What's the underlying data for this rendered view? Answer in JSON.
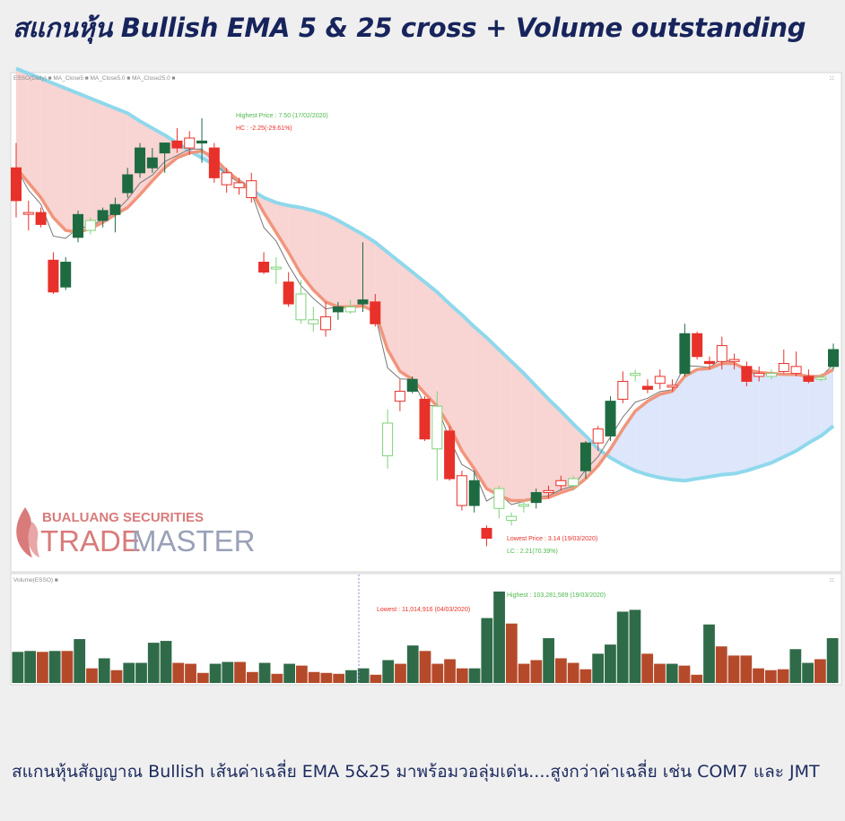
{
  "header": {
    "title": "สแกนหุ้น Bullish EMA 5 & 25 cross + Volume outstanding"
  },
  "caption": "สแกนหุ้นสัญญาณ Bullish เส้นค่าเฉลี่ย EMA 5&25  มาพร้อมวอลุ่มเด่น....สูงกว่าค่าเฉลี่ย เช่น COM7 และ JMT",
  "watermark": {
    "line1": "BUALUANG SECURITIES",
    "line2a": "TRADE",
    "line2b": "MASTER"
  },
  "colors": {
    "up": "#1e6b42",
    "down": "#e8312a",
    "up_hollow": "#7ed37a",
    "down_hollow": "#e8312a",
    "ema_fast": "#f0957c",
    "ema_slow": "#8fd8ec",
    "fill_bear": "#f8d4d2",
    "fill_bull": "#dde6fa",
    "vol_up": "#2f6b48",
    "vol_down": "#b54a2a"
  },
  "chart_data": [
    {
      "type": "candlestick",
      "legend": "ESSO(Daily) ■ MA_Close5 ■ MA_Close5.0 ■ MA_Close25.0 ■",
      "ylim": [
        2.9,
        7.9
      ],
      "annotations": {
        "highest": "Highest Price : 7.50 (17/02/2020)",
        "hc": "HC : -2.25(-29.61%)",
        "lowest": "Lowest Price : 3.14 (19/03/2020)",
        "lc": "LC : 2.21(70.39%)"
      },
      "candles": [
        {
          "o": 6.95,
          "h": 7.2,
          "l": 6.45,
          "c": 6.62,
          "s": "down"
        },
        {
          "o": 6.5,
          "h": 6.62,
          "l": 6.32,
          "c": 6.5,
          "s": "down_hollow"
        },
        {
          "o": 6.5,
          "h": 6.55,
          "l": 6.35,
          "c": 6.38,
          "s": "down"
        },
        {
          "o": 6.02,
          "h": 6.1,
          "l": 5.68,
          "c": 5.7,
          "s": "down"
        },
        {
          "o": 5.75,
          "h": 6.05,
          "l": 5.72,
          "c": 6.0,
          "s": "up"
        },
        {
          "o": 6.25,
          "h": 6.52,
          "l": 6.2,
          "c": 6.48,
          "s": "up"
        },
        {
          "o": 6.32,
          "h": 6.45,
          "l": 6.28,
          "c": 6.42,
          "s": "up_hollow"
        },
        {
          "o": 6.42,
          "h": 6.55,
          "l": 6.35,
          "c": 6.52,
          "s": "up"
        },
        {
          "o": 6.48,
          "h": 6.65,
          "l": 6.3,
          "c": 6.58,
          "s": "up"
        },
        {
          "o": 6.7,
          "h": 6.95,
          "l": 6.65,
          "c": 6.88,
          "s": "up"
        },
        {
          "o": 6.9,
          "h": 7.2,
          "l": 6.85,
          "c": 7.15,
          "s": "up"
        },
        {
          "o": 6.95,
          "h": 7.15,
          "l": 6.9,
          "c": 7.05,
          "s": "up"
        },
        {
          "o": 7.1,
          "h": 7.2,
          "l": 6.9,
          "c": 7.2,
          "s": "up"
        },
        {
          "o": 7.22,
          "h": 7.35,
          "l": 7.1,
          "c": 7.15,
          "s": "down"
        },
        {
          "o": 7.15,
          "h": 7.32,
          "l": 7.08,
          "c": 7.25,
          "s": "down_hollow"
        },
        {
          "o": 7.22,
          "h": 7.45,
          "l": 7.0,
          "c": 7.2,
          "s": "up"
        },
        {
          "o": 7.15,
          "h": 7.2,
          "l": 6.8,
          "c": 6.85,
          "s": "down"
        },
        {
          "o": 6.9,
          "h": 6.95,
          "l": 6.7,
          "c": 6.78,
          "s": "down_hollow"
        },
        {
          "o": 6.8,
          "h": 6.85,
          "l": 6.68,
          "c": 6.75,
          "s": "down_hollow"
        },
        {
          "o": 6.82,
          "h": 6.9,
          "l": 6.6,
          "c": 6.65,
          "s": "down_hollow"
        },
        {
          "o": 6.0,
          "h": 6.1,
          "l": 5.88,
          "c": 5.9,
          "s": "down"
        },
        {
          "o": 5.95,
          "h": 6.05,
          "l": 5.78,
          "c": 5.95,
          "s": "up_hollow"
        },
        {
          "o": 5.8,
          "h": 5.9,
          "l": 5.55,
          "c": 5.58,
          "s": "down"
        },
        {
          "o": 5.68,
          "h": 5.82,
          "l": 5.38,
          "c": 5.42,
          "s": "up_hollow"
        },
        {
          "o": 5.42,
          "h": 5.55,
          "l": 5.3,
          "c": 5.38,
          "s": "up_hollow"
        },
        {
          "o": 5.45,
          "h": 5.6,
          "l": 5.25,
          "c": 5.32,
          "s": "down_hollow"
        },
        {
          "o": 5.5,
          "h": 5.6,
          "l": 5.42,
          "c": 5.55,
          "s": "up"
        },
        {
          "o": 5.55,
          "h": 5.62,
          "l": 5.48,
          "c": 5.5,
          "s": "up_hollow"
        },
        {
          "o": 5.58,
          "h": 6.2,
          "l": 5.5,
          "c": 5.62,
          "s": "up"
        },
        {
          "o": 5.6,
          "h": 5.68,
          "l": 5.35,
          "c": 5.38,
          "s": "down"
        },
        {
          "o": 4.05,
          "h": 4.52,
          "l": 3.92,
          "c": 4.38,
          "s": "up_hollow"
        },
        {
          "o": 4.7,
          "h": 4.82,
          "l": 4.5,
          "c": 4.6,
          "s": "down_hollow"
        },
        {
          "o": 4.7,
          "h": 4.85,
          "l": 4.68,
          "c": 4.82,
          "s": "up"
        },
        {
          "o": 4.62,
          "h": 4.65,
          "l": 4.2,
          "c": 4.22,
          "s": "down"
        },
        {
          "o": 4.12,
          "h": 4.7,
          "l": 3.8,
          "c": 4.55,
          "s": "up_hollow"
        },
        {
          "o": 4.3,
          "h": 4.35,
          "l": 3.8,
          "c": 3.82,
          "s": "down"
        },
        {
          "o": 3.85,
          "h": 3.9,
          "l": 3.5,
          "c": 3.55,
          "s": "down_hollow"
        },
        {
          "o": 3.55,
          "h": 3.9,
          "l": 3.48,
          "c": 3.8,
          "s": "up"
        },
        {
          "o": 3.32,
          "h": 3.35,
          "l": 3.14,
          "c": 3.22,
          "s": "down"
        },
        {
          "o": 3.52,
          "h": 3.75,
          "l": 3.42,
          "c": 3.72,
          "s": "up_hollow"
        },
        {
          "o": 3.4,
          "h": 3.48,
          "l": 3.35,
          "c": 3.44,
          "s": "up_hollow"
        },
        {
          "o": 3.55,
          "h": 3.6,
          "l": 3.48,
          "c": 3.56,
          "s": "up_hollow"
        },
        {
          "o": 3.58,
          "h": 3.72,
          "l": 3.52,
          "c": 3.68,
          "s": "up"
        },
        {
          "o": 3.68,
          "h": 3.75,
          "l": 3.62,
          "c": 3.7,
          "s": "down_hollow"
        },
        {
          "o": 3.75,
          "h": 3.85,
          "l": 3.7,
          "c": 3.8,
          "s": "down_hollow"
        },
        {
          "o": 3.75,
          "h": 3.85,
          "l": 3.7,
          "c": 3.82,
          "s": "up_hollow"
        },
        {
          "o": 3.9,
          "h": 4.2,
          "l": 3.82,
          "c": 4.18,
          "s": "up"
        },
        {
          "o": 4.18,
          "h": 4.35,
          "l": 4.1,
          "c": 4.32,
          "s": "down_hollow"
        },
        {
          "o": 4.25,
          "h": 4.65,
          "l": 4.2,
          "c": 4.6,
          "s": "up"
        },
        {
          "o": 4.62,
          "h": 4.9,
          "l": 4.58,
          "c": 4.8,
          "s": "down_hollow"
        },
        {
          "o": 4.88,
          "h": 4.92,
          "l": 4.8,
          "c": 4.86,
          "s": "up_hollow"
        },
        {
          "o": 4.75,
          "h": 4.82,
          "l": 4.68,
          "c": 4.72,
          "s": "down"
        },
        {
          "o": 4.85,
          "h": 4.92,
          "l": 4.72,
          "c": 4.78,
          "s": "down_hollow"
        },
        {
          "o": 4.75,
          "h": 4.82,
          "l": 4.7,
          "c": 4.76,
          "s": "down_hollow"
        },
        {
          "o": 4.88,
          "h": 5.38,
          "l": 4.85,
          "c": 5.28,
          "s": "up"
        },
        {
          "o": 5.28,
          "h": 5.3,
          "l": 5.02,
          "c": 5.05,
          "s": "down"
        },
        {
          "o": 5.0,
          "h": 5.05,
          "l": 4.92,
          "c": 4.98,
          "s": "down"
        },
        {
          "o": 5.0,
          "h": 5.25,
          "l": 4.92,
          "c": 5.16,
          "s": "down_hollow"
        },
        {
          "o": 5.02,
          "h": 5.08,
          "l": 4.92,
          "c": 5.0,
          "s": "down_hollow"
        },
        {
          "o": 4.95,
          "h": 5.0,
          "l": 4.75,
          "c": 4.8,
          "s": "down"
        },
        {
          "o": 4.88,
          "h": 4.95,
          "l": 4.8,
          "c": 4.85,
          "s": "down_hollow"
        },
        {
          "o": 4.85,
          "h": 4.92,
          "l": 4.82,
          "c": 4.88,
          "s": "up_hollow"
        },
        {
          "o": 4.98,
          "h": 5.12,
          "l": 4.88,
          "c": 4.9,
          "s": "down_hollow"
        },
        {
          "o": 4.95,
          "h": 5.1,
          "l": 4.85,
          "c": 4.88,
          "s": "down_hollow"
        },
        {
          "o": 4.85,
          "h": 4.92,
          "l": 4.78,
          "c": 4.8,
          "s": "down"
        },
        {
          "o": 4.82,
          "h": 4.88,
          "l": 4.8,
          "c": 4.84,
          "s": "up_hollow"
        },
        {
          "o": 4.95,
          "h": 5.18,
          "l": 4.92,
          "c": 5.12,
          "s": "up"
        }
      ],
      "ema_fast": [
        6.95,
        6.8,
        6.65,
        6.45,
        6.32,
        6.3,
        6.34,
        6.4,
        6.48,
        6.55,
        6.68,
        6.82,
        6.95,
        7.05,
        7.1,
        7.12,
        7.05,
        6.92,
        6.82,
        6.72,
        6.5,
        6.3,
        6.1,
        5.88,
        5.72,
        5.6,
        5.55,
        5.55,
        5.56,
        5.5,
        5.12,
        4.9,
        4.82,
        4.68,
        4.55,
        4.35,
        4.1,
        3.92,
        3.72,
        3.65,
        3.6,
        3.6,
        3.62,
        3.63,
        3.68,
        3.72,
        3.82,
        3.95,
        4.12,
        4.32,
        4.5,
        4.6,
        4.67,
        4.7,
        4.85,
        4.92,
        4.93,
        4.98,
        4.98,
        4.92,
        4.89,
        4.88,
        4.87,
        4.87,
        4.85,
        4.85,
        4.92
      ],
      "ema_slow": [
        7.95,
        7.9,
        7.85,
        7.8,
        7.75,
        7.7,
        7.65,
        7.6,
        7.55,
        7.5,
        7.42,
        7.35,
        7.28,
        7.2,
        7.12,
        7.05,
        6.98,
        6.9,
        6.82,
        6.73,
        6.65,
        6.6,
        6.57,
        6.55,
        6.52,
        6.48,
        6.42,
        6.35,
        6.28,
        6.2,
        6.1,
        6.0,
        5.9,
        5.8,
        5.7,
        5.58,
        5.47,
        5.35,
        5.24,
        5.12,
        5.0,
        4.88,
        4.75,
        4.62,
        4.5,
        4.37,
        4.25,
        4.12,
        4.03,
        3.96,
        3.9,
        3.86,
        3.83,
        3.81,
        3.8,
        3.82,
        3.84,
        3.86,
        3.87,
        3.9,
        3.94,
        3.98,
        4.04,
        4.1,
        4.18,
        4.25,
        4.35
      ],
      "volume": {
        "ylim": [
          0,
          103281589
        ],
        "highest": "Highest : 103,281,589 (19/03/2020)",
        "lowest": "Lowest : 11,014,916 (04/03/2020)",
        "legend": "Volume(ESSO) ■",
        "values": [
          {
            "v": 34,
            "s": "up"
          },
          {
            "v": 35,
            "s": "up"
          },
          {
            "v": 34,
            "s": "down"
          },
          {
            "v": 35,
            "s": "up"
          },
          {
            "v": 35,
            "s": "down"
          },
          {
            "v": 48,
            "s": "up"
          },
          {
            "v": 16,
            "s": "down"
          },
          {
            "v": 27,
            "s": "up"
          },
          {
            "v": 14,
            "s": "down"
          },
          {
            "v": 22,
            "s": "up"
          },
          {
            "v": 22,
            "s": "up"
          },
          {
            "v": 44,
            "s": "up"
          },
          {
            "v": 46,
            "s": "up"
          },
          {
            "v": 22,
            "s": "down"
          },
          {
            "v": 21,
            "s": "down"
          },
          {
            "v": 11,
            "s": "down"
          },
          {
            "v": 21,
            "s": "up"
          },
          {
            "v": 23,
            "s": "up"
          },
          {
            "v": 23,
            "s": "down"
          },
          {
            "v": 12,
            "s": "down"
          },
          {
            "v": 22,
            "s": "up"
          },
          {
            "v": 10,
            "s": "down"
          },
          {
            "v": 21,
            "s": "up"
          },
          {
            "v": 19,
            "s": "down"
          },
          {
            "v": 12,
            "s": "down"
          },
          {
            "v": 11,
            "s": "down"
          },
          {
            "v": 10,
            "s": "down"
          },
          {
            "v": 14,
            "s": "up"
          },
          {
            "v": 16,
            "s": "up"
          },
          {
            "v": 9,
            "s": "down"
          },
          {
            "v": 25,
            "s": "up"
          },
          {
            "v": 21,
            "s": "down"
          },
          {
            "v": 41,
            "s": "up"
          },
          {
            "v": 35,
            "s": "down"
          },
          {
            "v": 21,
            "s": "down"
          },
          {
            "v": 26,
            "s": "down"
          },
          {
            "v": 16,
            "s": "down"
          },
          {
            "v": 16,
            "s": "up"
          },
          {
            "v": 71,
            "s": "up"
          },
          {
            "v": 100,
            "s": "up"
          },
          {
            "v": 65,
            "s": "down"
          },
          {
            "v": 21,
            "s": "down"
          },
          {
            "v": 25,
            "s": "down"
          },
          {
            "v": 49,
            "s": "up"
          },
          {
            "v": 27,
            "s": "down"
          },
          {
            "v": 22,
            "s": "down"
          },
          {
            "v": 15,
            "s": "down"
          },
          {
            "v": 32,
            "s": "up"
          },
          {
            "v": 42,
            "s": "up"
          },
          {
            "v": 78,
            "s": "up"
          },
          {
            "v": 80,
            "s": "up"
          },
          {
            "v": 32,
            "s": "down"
          },
          {
            "v": 21,
            "s": "down"
          },
          {
            "v": 21,
            "s": "up"
          },
          {
            "v": 19,
            "s": "down"
          },
          {
            "v": 9,
            "s": "down"
          },
          {
            "v": 64,
            "s": "up"
          },
          {
            "v": 40,
            "s": "down"
          },
          {
            "v": 30,
            "s": "down"
          },
          {
            "v": 30,
            "s": "down"
          },
          {
            "v": 16,
            "s": "down"
          },
          {
            "v": 14,
            "s": "down"
          },
          {
            "v": 15,
            "s": "down"
          },
          {
            "v": 37,
            "s": "up"
          },
          {
            "v": 22,
            "s": "up"
          },
          {
            "v": 26,
            "s": "down"
          },
          {
            "v": 49,
            "s": "up"
          }
        ]
      }
    }
  ]
}
